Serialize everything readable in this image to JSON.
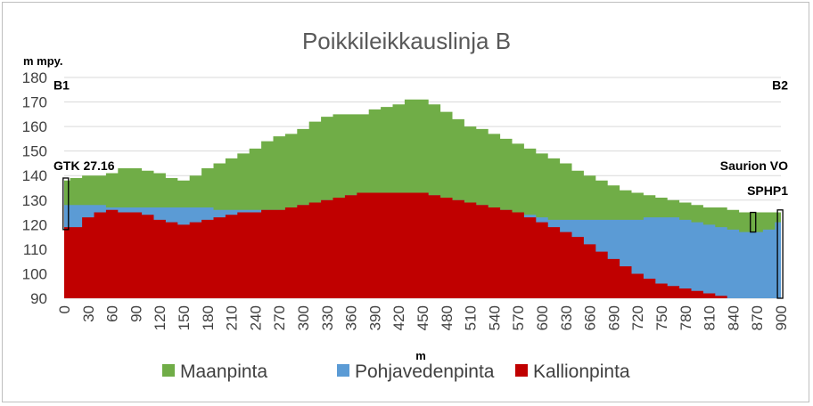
{
  "chart_data": {
    "type": "area",
    "title": "Poikkileikkauslinja B",
    "ylabel": "m mpy.",
    "xlabel": "m",
    "ylim": [
      90,
      180
    ],
    "yticks": [
      90,
      100,
      110,
      120,
      130,
      140,
      150,
      160,
      170,
      180
    ],
    "xticks": [
      0,
      30,
      60,
      90,
      120,
      150,
      180,
      210,
      240,
      270,
      300,
      330,
      360,
      390,
      420,
      450,
      480,
      510,
      540,
      570,
      600,
      630,
      660,
      690,
      720,
      750,
      780,
      810,
      840,
      870,
      900
    ],
    "xlim": [
      0,
      900
    ],
    "grid": true,
    "legend_position": "bottom",
    "x": [
      0,
      15,
      30,
      45,
      60,
      75,
      90,
      105,
      120,
      135,
      150,
      165,
      180,
      195,
      210,
      225,
      240,
      255,
      270,
      285,
      300,
      315,
      330,
      345,
      360,
      375,
      390,
      405,
      420,
      435,
      450,
      465,
      480,
      495,
      510,
      525,
      540,
      555,
      570,
      585,
      600,
      615,
      630,
      645,
      660,
      675,
      690,
      705,
      720,
      735,
      750,
      765,
      780,
      795,
      810,
      825,
      840,
      855,
      870,
      885,
      900
    ],
    "series": [
      {
        "name": "Maanpinta",
        "color": "#70ad47",
        "values": [
          138,
          139,
          140,
          140,
          141,
          143,
          143,
          142,
          141,
          139,
          138,
          140,
          143,
          145,
          147,
          149,
          151,
          154,
          156,
          157,
          159,
          162,
          164,
          165,
          165,
          165,
          167,
          168,
          169,
          171,
          171,
          169,
          166,
          163,
          160,
          159,
          157,
          155,
          153,
          151,
          149,
          147,
          145,
          142,
          140,
          138,
          136,
          134,
          133,
          132,
          131,
          130,
          129,
          128,
          127,
          127,
          126,
          125,
          125,
          125,
          125
        ]
      },
      {
        "name": "Pohjavedenpinta",
        "color": "#5b9bd5",
        "values": [
          128,
          128,
          128,
          128,
          127,
          127,
          127,
          127,
          127,
          127,
          127,
          127,
          127,
          126,
          126,
          126,
          126,
          126,
          126,
          127,
          128,
          129,
          130,
          131,
          132,
          133,
          133,
          133,
          133,
          133,
          133,
          132,
          131,
          130,
          129,
          128,
          127,
          126,
          125,
          124,
          123,
          122,
          122,
          122,
          122,
          122,
          122,
          122,
          122,
          123,
          123,
          123,
          122,
          121,
          120,
          119,
          118,
          117,
          117,
          118,
          121
        ]
      },
      {
        "name": "Kallionpinta",
        "color": "#c00000",
        "values": [
          119,
          119,
          123,
          125,
          126,
          125,
          125,
          124,
          122,
          121,
          120,
          121,
          122,
          123,
          124,
          125,
          125,
          126,
          126,
          127,
          128,
          129,
          130,
          131,
          132,
          133,
          133,
          133,
          133,
          133,
          133,
          132,
          131,
          130,
          129,
          128,
          127,
          126,
          125,
          123,
          121,
          119,
          117,
          115,
          112,
          109,
          106,
          103,
          100,
          98,
          96,
          95,
          94,
          93,
          92,
          91,
          90,
          90,
          90,
          90,
          90
        ]
      }
    ],
    "annotations": [
      {
        "text": "B1",
        "x": 0,
        "y": 177
      },
      {
        "text": "B2",
        "x": 900,
        "y": 177
      },
      {
        "text": "GTK 27.16",
        "x": 0,
        "y": 144
      },
      {
        "text": "Saurion VO",
        "x": 870,
        "y": 144
      },
      {
        "text": "SPHP1",
        "x": 900,
        "y": 134
      }
    ],
    "wells": [
      {
        "label": "GTK 27.16",
        "x": 2,
        "top": 139,
        "bottom": 118
      },
      {
        "label": "Saurion VO",
        "x": 865,
        "top": 125,
        "bottom": 117
      },
      {
        "label": "SPHP1",
        "x": 899,
        "top": 126,
        "bottom": 90
      }
    ]
  }
}
